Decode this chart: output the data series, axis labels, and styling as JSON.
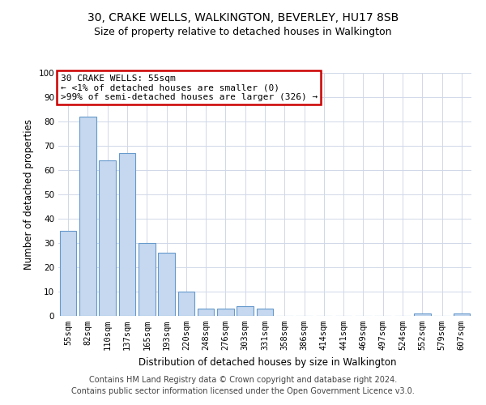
{
  "title": "30, CRAKE WELLS, WALKINGTON, BEVERLEY, HU17 8SB",
  "subtitle": "Size of property relative to detached houses in Walkington",
  "xlabel": "Distribution of detached houses by size in Walkington",
  "ylabel": "Number of detached properties",
  "categories": [
    "55sqm",
    "82sqm",
    "110sqm",
    "137sqm",
    "165sqm",
    "193sqm",
    "220sqm",
    "248sqm",
    "276sqm",
    "303sqm",
    "331sqm",
    "358sqm",
    "386sqm",
    "414sqm",
    "441sqm",
    "469sqm",
    "497sqm",
    "524sqm",
    "552sqm",
    "579sqm",
    "607sqm"
  ],
  "values": [
    35,
    82,
    64,
    67,
    30,
    26,
    10,
    3,
    3,
    4,
    3,
    0,
    0,
    0,
    0,
    0,
    0,
    0,
    1,
    0,
    1
  ],
  "bar_color": "#c5d8ef",
  "bar_edge_color": "#6699cc",
  "ylim": [
    0,
    100
  ],
  "yticks": [
    0,
    10,
    20,
    30,
    40,
    50,
    60,
    70,
    80,
    90,
    100
  ],
  "annotation_line1": "30 CRAKE WELLS: 55sqm",
  "annotation_line2": "← <1% of detached houses are smaller (0)",
  "annotation_line3": ">99% of semi-detached houses are larger (326) →",
  "annotation_box_color": "#ffffff",
  "annotation_box_edge_color": "#cc0000",
  "footer_line1": "Contains HM Land Registry data © Crown copyright and database right 2024.",
  "footer_line2": "Contains public sector information licensed under the Open Government Licence v3.0.",
  "bg_color": "#ffffff",
  "grid_color": "#d0d8e8",
  "title_fontsize": 10,
  "subtitle_fontsize": 9,
  "axis_label_fontsize": 8.5,
  "tick_fontsize": 7.5,
  "annotation_fontsize": 8,
  "footer_fontsize": 7
}
